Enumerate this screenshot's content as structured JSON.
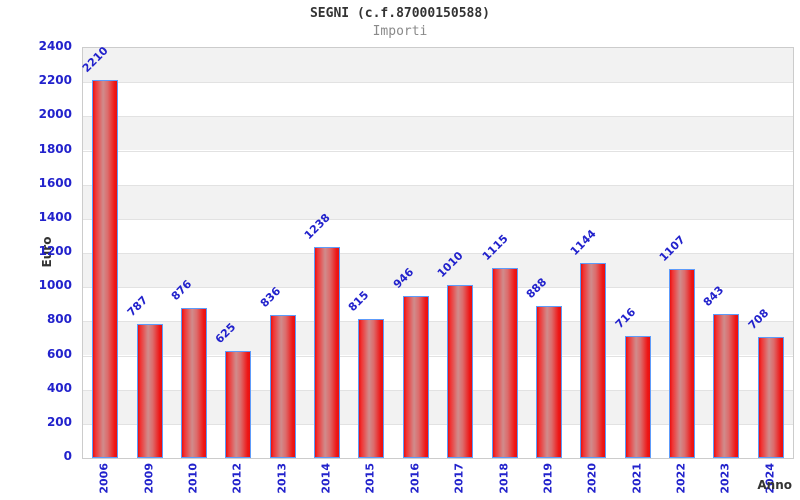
{
  "header": {
    "title": "SEGNI (c.f.87000150588)",
    "subtitle": "Importi"
  },
  "chart_data": {
    "type": "bar",
    "title": "SEGNI (c.f.87000150588)",
    "subtitle": "Importi",
    "xlabel": "Anno",
    "ylabel": "Euro",
    "categories": [
      "2006",
      "2009",
      "2010",
      "2012",
      "2013",
      "2014",
      "2015",
      "2016",
      "2017",
      "2018",
      "2019",
      "2020",
      "2021",
      "2022",
      "2023",
      "2024"
    ],
    "values": [
      2210,
      787,
      876,
      625,
      836,
      1238,
      815,
      946,
      1010,
      1115,
      888,
      1144,
      716,
      1107,
      843,
      708
    ],
    "ylim": [
      0,
      2400
    ],
    "ytick_step": 200,
    "ytick_labels": [
      "0",
      "200",
      "400",
      "600",
      "800",
      "1000",
      "1200",
      "1400",
      "1600",
      "1800",
      "2000",
      "2200",
      "2400"
    ],
    "grid": "alternating-horizontal-bands",
    "legend_position": "none",
    "colors": {
      "bar_fill_edge": "#ee1111",
      "bar_fill_mid": "#d08c8c",
      "bar_border": "#5d9bfa",
      "tick_label": "#2222cc",
      "value_label": "#2222cc",
      "band_gray": "#f2f2f2",
      "band_white": "#ffffff",
      "plot_border": "#cccccc",
      "title_color": "#333333",
      "subtitle_color": "#8a8a8a",
      "axis_title_color": "#333333"
    }
  }
}
